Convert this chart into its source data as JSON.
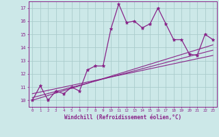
{
  "xlabel": "Windchill (Refroidissement éolien,°C)",
  "bg_color": "#cce8e8",
  "grid_color": "#aacccc",
  "line_color": "#882288",
  "xlim": [
    -0.5,
    23.5
  ],
  "ylim": [
    9.5,
    17.5
  ],
  "yticks": [
    10,
    11,
    12,
    13,
    14,
    15,
    16,
    17
  ],
  "xticks": [
    0,
    1,
    2,
    3,
    4,
    5,
    6,
    7,
    8,
    9,
    10,
    11,
    12,
    13,
    14,
    15,
    16,
    17,
    18,
    19,
    20,
    21,
    22,
    23
  ],
  "series": [
    [
      0,
      10.0
    ],
    [
      1,
      11.1
    ],
    [
      2,
      10.0
    ],
    [
      3,
      10.7
    ],
    [
      4,
      10.5
    ],
    [
      5,
      11.0
    ],
    [
      6,
      10.7
    ],
    [
      7,
      12.3
    ],
    [
      8,
      12.6
    ],
    [
      9,
      12.6
    ],
    [
      10,
      15.4
    ],
    [
      11,
      17.3
    ],
    [
      12,
      15.9
    ],
    [
      13,
      16.0
    ],
    [
      14,
      15.5
    ],
    [
      15,
      15.8
    ],
    [
      16,
      17.0
    ],
    [
      17,
      15.8
    ],
    [
      18,
      14.6
    ],
    [
      19,
      14.6
    ],
    [
      20,
      13.5
    ],
    [
      21,
      13.4
    ],
    [
      22,
      15.0
    ],
    [
      23,
      14.6
    ]
  ],
  "trend_lines": [
    {
      "x": [
        0,
        23
      ],
      "y": [
        10.0,
        14.2
      ]
    },
    {
      "x": [
        0,
        23
      ],
      "y": [
        10.2,
        13.8
      ]
    },
    {
      "x": [
        0,
        23
      ],
      "y": [
        10.5,
        13.4
      ]
    }
  ]
}
